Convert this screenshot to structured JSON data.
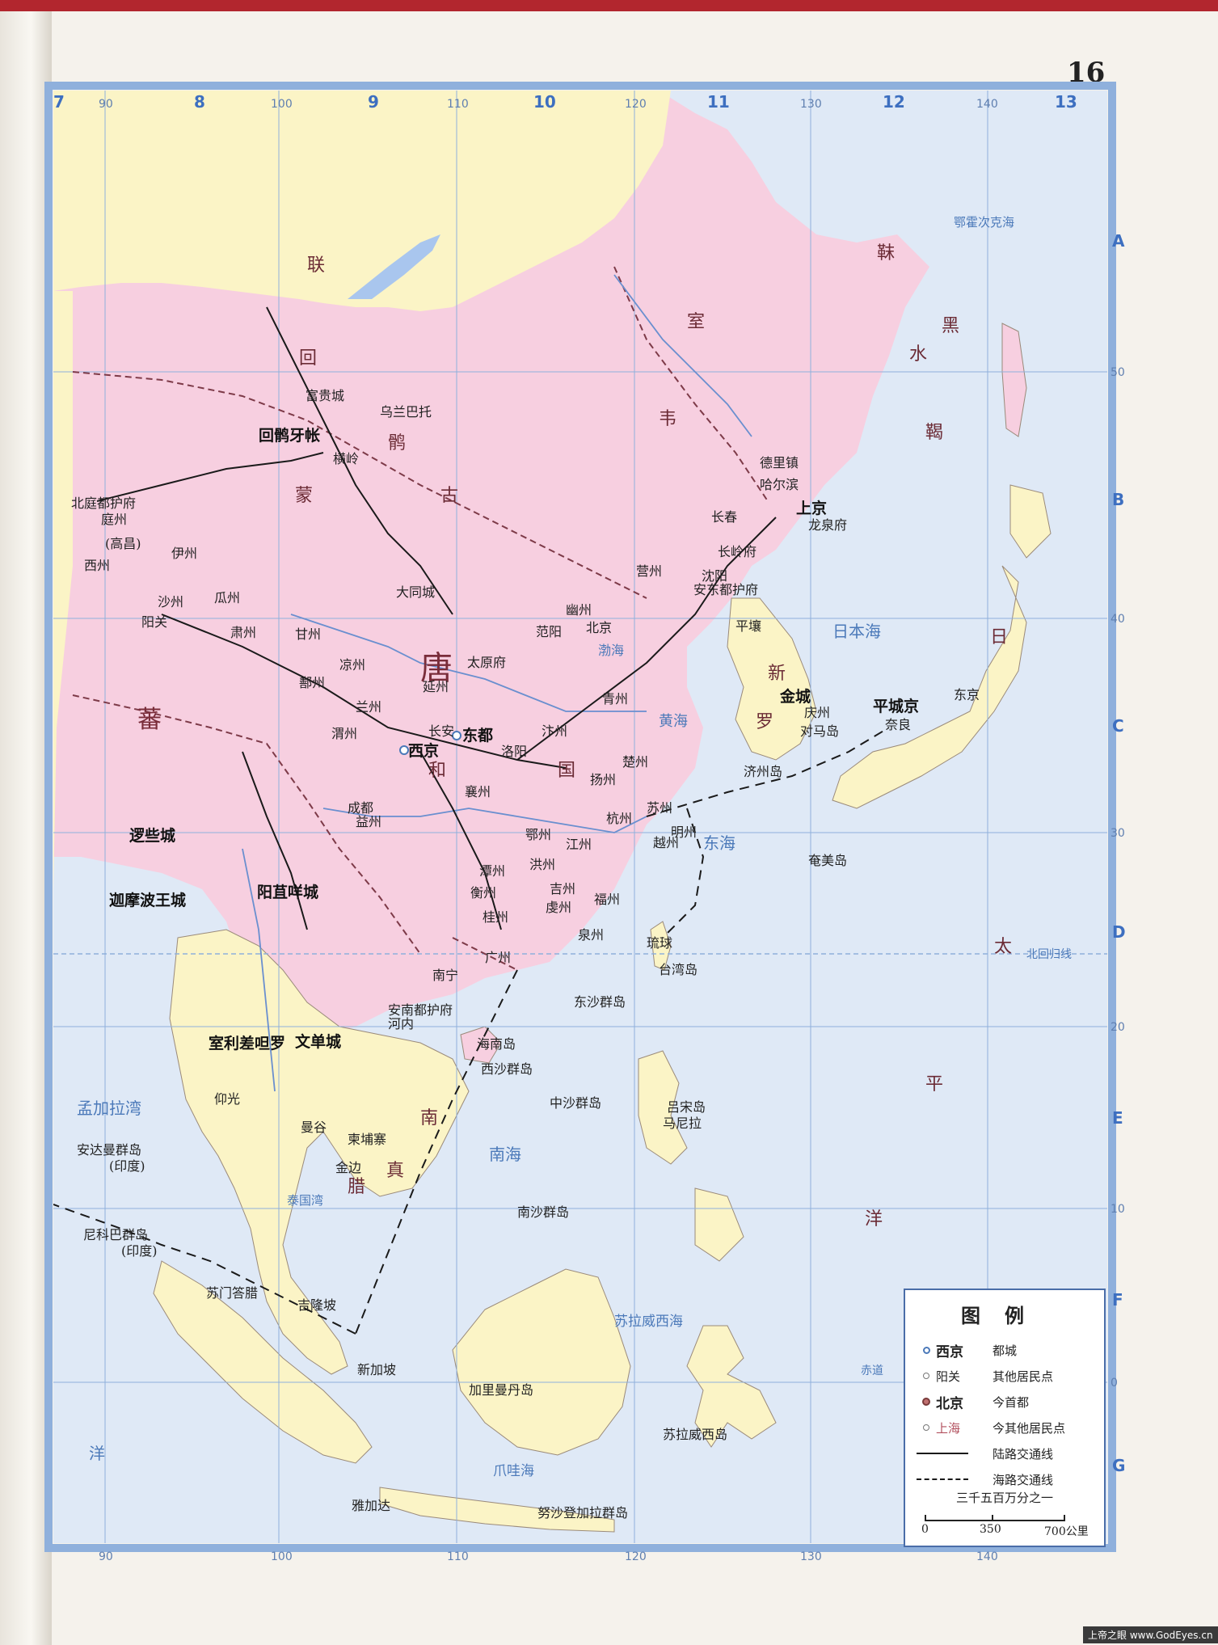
{
  "page_number": "16",
  "grid": {
    "longitudes": [
      "90",
      "100",
      "110",
      "120",
      "130",
      "140"
    ],
    "latitudes": [
      "50",
      "40",
      "30",
      "20",
      "10",
      "0"
    ],
    "column_numbers": [
      "8",
      "9",
      "10",
      "11",
      "12",
      "13"
    ],
    "row_letters": [
      "A",
      "B",
      "C",
      "D",
      "E",
      "F",
      "G"
    ],
    "edge_column": "7"
  },
  "regions": {
    "tang": "唐",
    "tang_republic": "和",
    "tang_guo": "国",
    "mengu": "蒙",
    "gu": "古",
    "huihe": "回",
    "hu": "鹘",
    "tubo": "蕃",
    "shiwei": "室",
    "wei": "韦",
    "heishui": "黑",
    "shui": "水",
    "mohe": "靺",
    "jie": "鞨",
    "xinluo": "新",
    "luo": "罗",
    "riben": "日",
    "liangzhou_note": "联",
    "nanzhao": "南",
    "zhenla": "真",
    "la": "腊",
    "taiping_ocean": "太",
    "ping": "平",
    "yang": "洋"
  },
  "seas": {
    "japan_sea": "日本海",
    "yellow_sea": "黄海",
    "east_sea": "东海",
    "south_sea": "南海",
    "bohai": "渤海",
    "okhotsk": "鄂霍次克海",
    "bengal_bay": "孟加拉湾",
    "siam_bay": "泰国湾",
    "sulawesi_sea": "苏拉威西海",
    "java_sea": "爪哇海",
    "indian_ocean": "洋",
    "tropic": "北回归线",
    "equator": "赤道"
  },
  "capitals": {
    "xijing": "西京",
    "dongdu": "东都",
    "huihe_yazhang": "回鹘牙帐",
    "luoxiecheng": "逻些城",
    "yangjumiecheng": "阳苴咩城",
    "pingcheng_jing": "平城京",
    "jincheng": "金城",
    "shangjing": "上京",
    "wendancheng": "文单城",
    "shilichaduoluo": "室利差呾罗",
    "jiamoboluowangcheng": "迦摩波王城"
  },
  "cities": {
    "beiting": "北庭都护府",
    "tingzhou": "庭州",
    "xizhou": "西州",
    "gaochang": "(高昌)",
    "yizhou": "伊州",
    "shazhou": "沙州",
    "guazhou": "瓜州",
    "yangguan": "阳关",
    "suzhou": "肃州",
    "ganzhou": "甘州",
    "liangzhou": "凉州",
    "shanzhou": "鄯州",
    "lanzhou": "兰州",
    "weizhou": "渭州",
    "yanzhou": "延州",
    "taiyuan": "太原府",
    "youzhou": "幽州",
    "fanyang": "范阳",
    "beijing": "北京",
    "chengdu": "成都",
    "yizhou_sc": "益州",
    "jiangzhou": "江州",
    "hongzhou": "洪州",
    "yangzhou": "扬州",
    "suzhou_js": "苏州",
    "hangzhou": "杭州",
    "yuezhou": "越州",
    "mingzhou": "明州",
    "fuzhou": "福州",
    "quanzhou": "泉州",
    "guangzhou": "广州",
    "nanning": "南宁",
    "annan": "安南都护府",
    "hanoi": "河内",
    "changling": "长岭府",
    "anding": "安东都护府",
    "yingzhou": "营州",
    "changchun": "长春",
    "harbin": "哈尔滨",
    "shenyang": "沈阳",
    "pingrang": "平壤",
    "changan": "长安",
    "luoyang": "洛阳",
    "xiangzhou": "襄州",
    "ezhou": "鄂州",
    "qingzhou": "青州",
    "bianzhou": "汴州",
    "chuzhou": "楚州",
    "tanzhou": "潭州",
    "hengzhou": "衡州",
    "jizhou": "吉州",
    "qianzhou": "虔州",
    "guilin": "桂州",
    "datong": "大同城",
    "hengling": "横岭",
    "fugui": "富贵城",
    "wulanbatuo": "乌兰巴托",
    "nanjing_jp": "东京",
    "nara": "奈良",
    "duimadao": "对马岛",
    "qingzhou_kr": "庆州",
    "jizhoudao": "济州岛",
    "taiwan": "台湾岛",
    "hainan": "海南岛",
    "dongsha": "东沙群岛",
    "xisha": "西沙群岛",
    "zhongsha": "中沙群岛",
    "nansha": "南沙群岛",
    "manila": "马尼拉",
    "manggu": "曼谷",
    "jinbian": "金边",
    "jiangpuzhai": "柬埔寨",
    "yangguang": "仰光",
    "xinjiapo": "新加坡",
    "jilongpo": "吉隆坡",
    "yajiada": "雅加达",
    "andaman": "安达曼群岛",
    "andaman_note": "(印度)",
    "nicobar": "尼科巴群岛",
    "nicobar_note": "(印度)",
    "jialimandan": "加里曼丹岛",
    "sulawesi": "苏拉威西岛",
    "gelaxi": "苏门答腊",
    "nusa": "努沙登加拉群岛",
    "liuqiu": "琉球",
    "yanmei": "奄美岛",
    "lvsong": "吕宋岛",
    "dehli": "德里镇",
    "longquan": "龙泉府"
  },
  "legend": {
    "title": "图例",
    "rows": [
      {
        "sample": "西京",
        "desc": "都城"
      },
      {
        "sample": "阳关",
        "desc": "其他居民点"
      },
      {
        "sample": "北京",
        "desc": "今首都"
      },
      {
        "sample": "上海",
        "desc": "今其他居民点"
      },
      {
        "sample": "",
        "desc": "陆路交通线"
      },
      {
        "sample": "",
        "desc": "海路交通线"
      }
    ],
    "scale_text": "三千五百万分之一",
    "scale_0": "0",
    "scale_350": "350",
    "scale_700": "700公里"
  },
  "watermark": "上帝之眼  www.GodEyes.cn",
  "colors": {
    "tang": "#f7cfe0",
    "neighbor": "#fbf4c6",
    "sea": "#dfe9f6",
    "border": "#7d3a48",
    "grid": "#8fb0dc",
    "river": "#6a8fcf"
  }
}
